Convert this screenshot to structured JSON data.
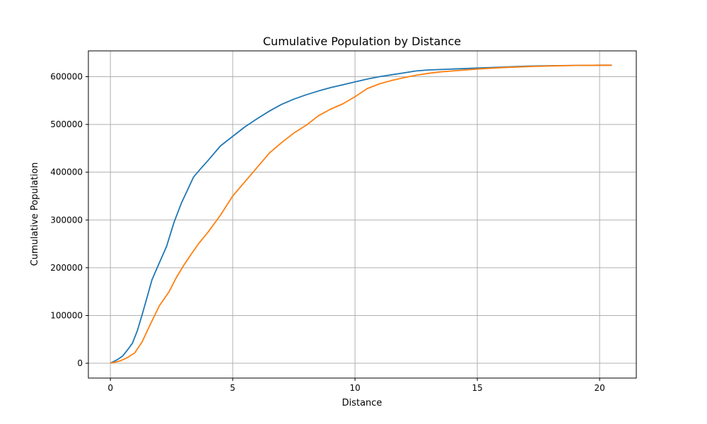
{
  "chart_data": {
    "type": "line",
    "title": "Cumulative Population by Distance",
    "xlabel": "Distance",
    "ylabel": "Cumulative Population",
    "xlim": [
      -0.9,
      21.5
    ],
    "ylim": [
      -31000,
      654000
    ],
    "xticks": [
      0,
      5,
      10,
      15,
      20
    ],
    "xtick_labels": [
      "0",
      "5",
      "10",
      "15",
      "20"
    ],
    "yticks": [
      0,
      100000,
      200000,
      300000,
      400000,
      500000,
      600000
    ],
    "ytick_labels": [
      "0",
      "100000",
      "200000",
      "300000",
      "400000",
      "500000",
      "600000"
    ],
    "grid": true,
    "legend": false,
    "series": [
      {
        "color": "#1f77b4",
        "x": [
          0,
          0.3,
          0.5,
          0.7,
          0.9,
          1.1,
          1.3,
          1.5,
          1.7,
          2.0,
          2.3,
          2.6,
          2.9,
          3.2,
          3.4,
          3.7,
          4.0,
          4.5,
          5.0,
          5.5,
          6.0,
          6.5,
          7.0,
          7.5,
          8.0,
          8.5,
          9.0,
          9.5,
          10.0,
          10.5,
          11.0,
          11.5,
          12.0,
          12.5,
          13.0,
          14.0,
          15.0,
          16.0,
          17.0,
          18.0,
          19.0,
          20.0,
          20.5
        ],
        "y": [
          0,
          8000,
          15000,
          28000,
          42000,
          68000,
          102000,
          138000,
          175000,
          210000,
          245000,
          295000,
          335000,
          368000,
          390000,
          408000,
          425000,
          455000,
          475000,
          495000,
          512000,
          528000,
          542000,
          553000,
          562000,
          570000,
          577000,
          583000,
          589000,
          595000,
          600000,
          604000,
          608000,
          612000,
          614000,
          616000,
          618000,
          620000,
          622000,
          623000,
          623500,
          624000,
          624000
        ]
      },
      {
        "color": "#ff7f0e",
        "x": [
          0,
          0.4,
          0.7,
          1.0,
          1.3,
          1.6,
          2.0,
          2.4,
          2.7,
          3.0,
          3.3,
          3.6,
          4.0,
          4.5,
          5.0,
          5.5,
          6.0,
          6.5,
          7.0,
          7.5,
          8.0,
          8.5,
          9.0,
          9.5,
          10.0,
          10.5,
          11.0,
          11.5,
          12.0,
          12.5,
          13.0,
          13.5,
          14.0,
          15.0,
          16.0,
          17.0,
          18.0,
          19.0,
          20.0,
          20.5
        ],
        "y": [
          0,
          5000,
          12000,
          22000,
          45000,
          78000,
          120000,
          150000,
          180000,
          205000,
          228000,
          250000,
          275000,
          310000,
          350000,
          380000,
          410000,
          440000,
          462000,
          482000,
          498000,
          518000,
          532000,
          543000,
          558000,
          575000,
          585000,
          592000,
          598000,
          603000,
          607000,
          610000,
          612000,
          616000,
          619000,
          621000,
          622500,
          623500,
          624000,
          624000
        ]
      }
    ]
  }
}
